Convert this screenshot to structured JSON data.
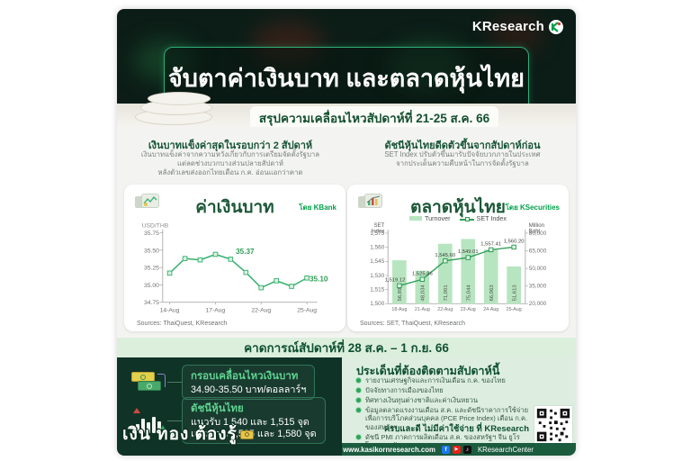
{
  "brand": {
    "name": "KResearch"
  },
  "header": {
    "title": "จับตาค่าเงินบาท และตลาดหุ้นไทย",
    "subtitle": "สรุปความเคลื่อนไหวสัปดาห์ที่ 21-25 ส.ค. 66"
  },
  "summary": {
    "baht": {
      "heading": "เงินบาทแข็งค่าสุดในรอบกว่า 2 สัปดาห์",
      "line1": "เงินบาทแข็งค่าจากความหวังเกี่ยวกับการเตรียมจัดตั้งรัฐบาล",
      "line2": "แต่ลดช่วงบวกบางส่วนปลายสัปดาห์",
      "line3": "หลังตัวเลขส่งออกไทยเดือน ก.ค. อ่อนแอกว่าคาด"
    },
    "set": {
      "heading": "ดัชนีหุ้นไทยดีดตัวขึ้นจากสัปดาห์ก่อน",
      "line1": "SET Index ปรับตัวขึ้นมารับปัจจัยบวกภายในประเทศ",
      "line2": "จากประเด็นความคืบหน้าในการจัดตั้งรัฐบาล"
    }
  },
  "chart_data": [
    {
      "id": "baht",
      "type": "line",
      "title": "ค่าเงินบาท",
      "byline": "โดย KBank",
      "ylabel": "USD/THB",
      "x": [
        "14-Aug",
        "15-Aug",
        "16-Aug",
        "17-Aug",
        "18-Aug",
        "21-Aug",
        "22-Aug",
        "23-Aug",
        "24-Aug",
        "25-Aug"
      ],
      "values": [
        35.17,
        35.38,
        35.36,
        35.44,
        35.37,
        35.18,
        34.96,
        35.06,
        34.98,
        35.1
      ],
      "ylim": [
        34.75,
        35.75
      ],
      "yticks": [
        34.75,
        35.0,
        35.25,
        35.5,
        35.75
      ],
      "xticks": [
        "14-Aug",
        "17-Aug",
        "22-Aug",
        "25-Aug"
      ],
      "annotated_points": [
        4,
        9
      ],
      "line_color": "#3bb273",
      "grid": false,
      "source": "Sources: ThaiQuest, KResearch"
    },
    {
      "id": "set",
      "type": "bar",
      "title": "ตลาดหุ้นไทย",
      "byline": "โดย KSecurities",
      "left_axis_label": "SET Index",
      "right_axis_label": "Million Baht",
      "categories": [
        "18-Aug",
        "21-Aug",
        "22-Aug",
        "23-Aug",
        "24-Aug",
        "25-Aug"
      ],
      "series": [
        {
          "name": "Turnover",
          "type": "bar",
          "axis": "right",
          "color": "#b7e5c0",
          "values": [
            56890,
            48034,
            71001,
            75044,
            66063,
            51613
          ]
        },
        {
          "name": "SET Index",
          "type": "line",
          "axis": "left",
          "color": "#2f9e57",
          "values": [
            1519.12,
            1525.86,
            1545.6,
            1549.01,
            1557.41,
            1560.2
          ]
        }
      ],
      "left_lim": [
        1500,
        1575
      ],
      "left_ticks": [
        1500,
        1515,
        1530,
        1545,
        1560,
        1575
      ],
      "right_lim": [
        20000,
        80000
      ],
      "right_ticks": [
        20000,
        35000,
        50000,
        65000,
        80000
      ],
      "legend_position": "top",
      "source": "Sources: SET, ThaiQuest, KResearch"
    }
  ],
  "forecast": {
    "banner": "คาดการณ์สัปดาห์ที่ 28 ส.ค. – 1 ก.ย. 66",
    "baht_range": {
      "label": "กรอบเคลื่อนไหวเงินบาท",
      "value": "34.90-35.50 บาท/ดอลลาร์ฯ"
    },
    "set_levels": {
      "label": "ดัชนีหุ้นไทย",
      "support": "แนวรับ 1,540 และ 1,515 จุด",
      "resistance": "แนวต้าน 1,565 และ 1,580 จุด"
    }
  },
  "watchlist": {
    "heading": "ประเด็นที่ต้องติดตามสัปดาห์นี้",
    "items": [
      "รายงานเศรษฐกิจและการเงินเดือน ก.ค. ของไทย",
      "ปัจจัยทางการเมืองของไทย",
      "ทิศทางเงินทุนต่างชาติและค่าเงินหยวน",
      "ข้อมูลตลาดแรงงานเดือน ส.ค. และดัชนีราคาการใช้จ่ายเพื่อการบริโภคส่วนบุคคล (PCE Price Index) เดือน ก.ค. ของสหรัฐฯ",
      "ดัชนี PMI ภาคการผลิตเดือน ส.ค. ของสหรัฐฯ จีน ยูโรโซน และอังกฤษ"
    ]
  },
  "footer": {
    "cta": "ครบและดี ไม่มีค่าใช้จ่าย ที่ KResearch",
    "tagline": "เงิน ทอง ต้องรู้",
    "website": "www.kasikornresearch.com",
    "social_handle": "KResearchCenter"
  },
  "colors": {
    "accent_green": "#00a14b",
    "dark_green": "#14502f",
    "panel_dark": "#103327",
    "pale_green": "#ddeee1",
    "bar_green": "#b7e5c0",
    "line_green": "#3bb273"
  }
}
